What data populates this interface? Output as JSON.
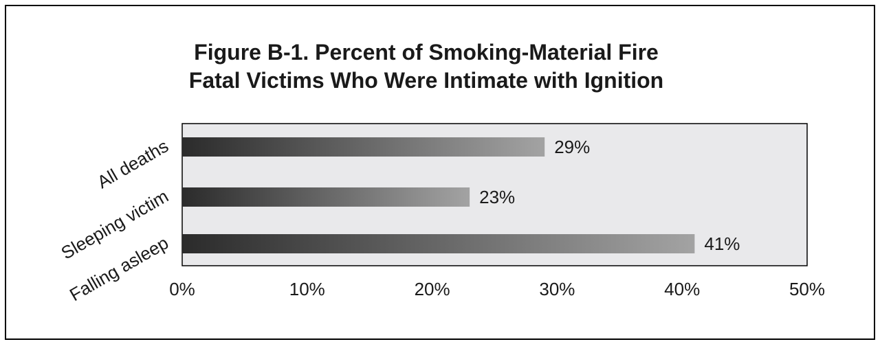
{
  "chart_data": {
    "type": "bar",
    "orientation": "horizontal",
    "title_lines": [
      "Figure B-1. Percent of Smoking-Material Fire",
      "Fatal Victims Who Were Intimate with Ignition"
    ],
    "categories": [
      "All deaths",
      "Sleeping victim",
      "Falling asleep"
    ],
    "values": [
      29,
      23,
      41
    ],
    "value_labels": [
      "29%",
      "23%",
      "41%"
    ],
    "xlim": [
      0,
      50
    ],
    "xticks": [
      0,
      10,
      20,
      30,
      40,
      50
    ],
    "xtick_labels": [
      "0%",
      "10%",
      "20%",
      "30%",
      "40%",
      "50%"
    ],
    "grid": false,
    "legend": "none",
    "colors": {
      "plot_background": "#e9e9eb",
      "bar_start": "#2b2b2b",
      "bar_end": "#a3a3a3",
      "text": "#1a1a1a"
    }
  }
}
